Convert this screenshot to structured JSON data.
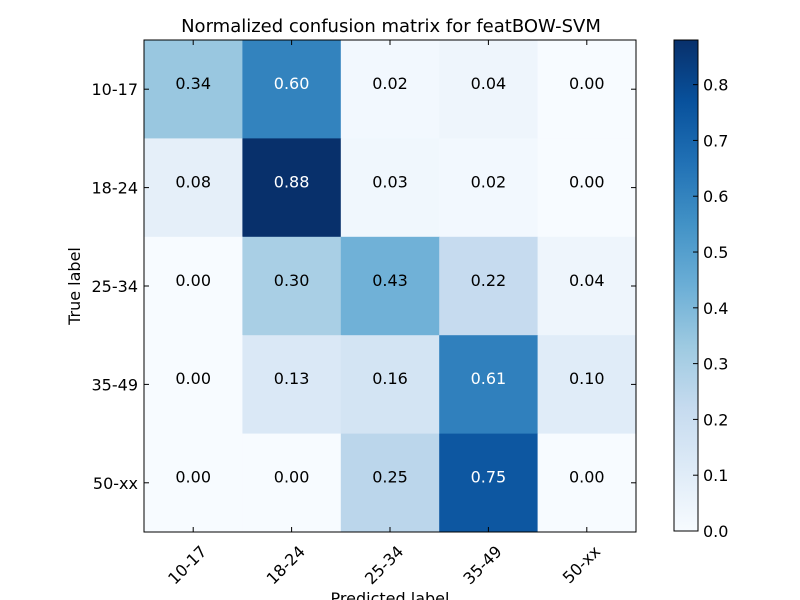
{
  "chart_data": {
    "type": "heatmap",
    "title": "Normalized confusion matrix for featBOW-SVM",
    "xlabel": "Predicted label",
    "ylabel": "True label",
    "x_categories": [
      "10-17",
      "18-24",
      "25-34",
      "35-49",
      "50-xx"
    ],
    "y_categories": [
      "10-17",
      "18-24",
      "25-34",
      "35-49",
      "50-xx"
    ],
    "matrix": [
      [
        0.34,
        0.6,
        0.02,
        0.04,
        0.0
      ],
      [
        0.08,
        0.88,
        0.03,
        0.02,
        0.0
      ],
      [
        0.0,
        0.3,
        0.43,
        0.22,
        0.04
      ],
      [
        0.0,
        0.13,
        0.16,
        0.61,
        0.1
      ],
      [
        0.0,
        0.0,
        0.25,
        0.75,
        0.0
      ]
    ],
    "cell_labels": [
      [
        "0.34",
        "0.60",
        "0.02",
        "0.04",
        "0.00"
      ],
      [
        "0.08",
        "0.88",
        "0.03",
        "0.02",
        "0.00"
      ],
      [
        "0.00",
        "0.30",
        "0.43",
        "0.22",
        "0.04"
      ],
      [
        "0.00",
        "0.13",
        "0.16",
        "0.61",
        "0.10"
      ],
      [
        "0.00",
        "0.00",
        "0.25",
        "0.75",
        "0.00"
      ]
    ],
    "colormap": "Blues",
    "colormap_stops": [
      "#f7fbff",
      "#deebf7",
      "#c6dbef",
      "#9ecae1",
      "#6baed6",
      "#4292c6",
      "#2171b5",
      "#08519c",
      "#08306b"
    ],
    "color_range": [
      0,
      0.88
    ],
    "colorbar": {
      "ticks": [
        0.0,
        0.1,
        0.2,
        0.3,
        0.4,
        0.5,
        0.6,
        0.7,
        0.8
      ],
      "tick_labels": [
        "0.0",
        "0.1",
        "0.2",
        "0.3",
        "0.4",
        "0.5",
        "0.6",
        "0.7",
        "0.8"
      ]
    },
    "text_color_dark": "#000000",
    "text_color_light": "#ffffff"
  }
}
